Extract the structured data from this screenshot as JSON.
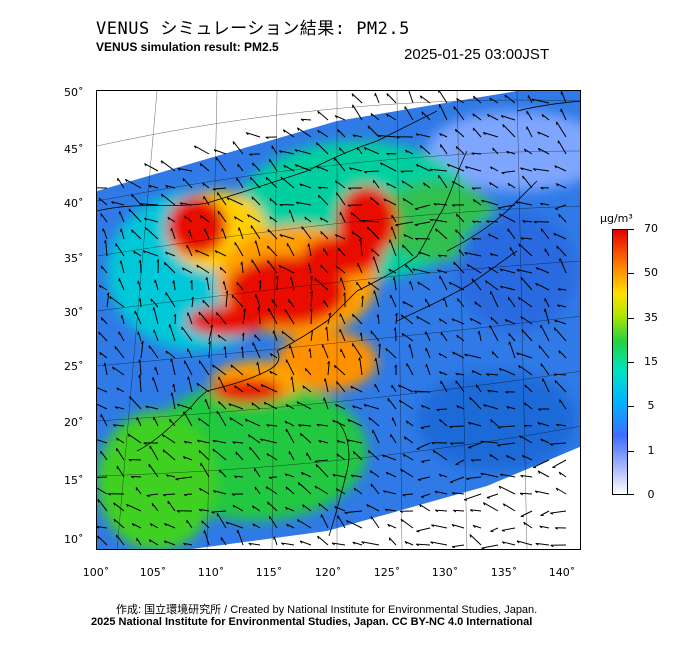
{
  "header": {
    "title_jp": "VENUS シミュレーション結果: PM2.5",
    "title_en": "VENUS simulation result: PM2.5",
    "datetime": "2025-01-25 03:00JST"
  },
  "map": {
    "lat_labels": [
      "50˚",
      "45˚",
      "40˚",
      "35˚",
      "30˚",
      "25˚",
      "20˚",
      "15˚",
      "10˚"
    ],
    "lon_labels": [
      "100˚",
      "105˚",
      "110˚",
      "115˚",
      "120˚",
      "125˚",
      "130˚",
      "135˚",
      "140˚"
    ],
    "field": "PM2.5 concentration with wind vectors"
  },
  "colorbar": {
    "unit": "μg/m³",
    "ticks": [
      "70",
      "50",
      "35",
      "15",
      "5",
      "1",
      "0"
    ],
    "colors": [
      "#ffffff",
      "#3d6cff",
      "#00b4ff",
      "#24d23c",
      "#ffe000",
      "#ff8400",
      "#e60000"
    ]
  },
  "credits": {
    "line1": "作成: 国立環境研究所 / Created by National Institute for Environmental Studies, Japan.",
    "line2": "2025 National Institute for Environmental Studies, Japan. CC BY-NC 4.0 International"
  }
}
